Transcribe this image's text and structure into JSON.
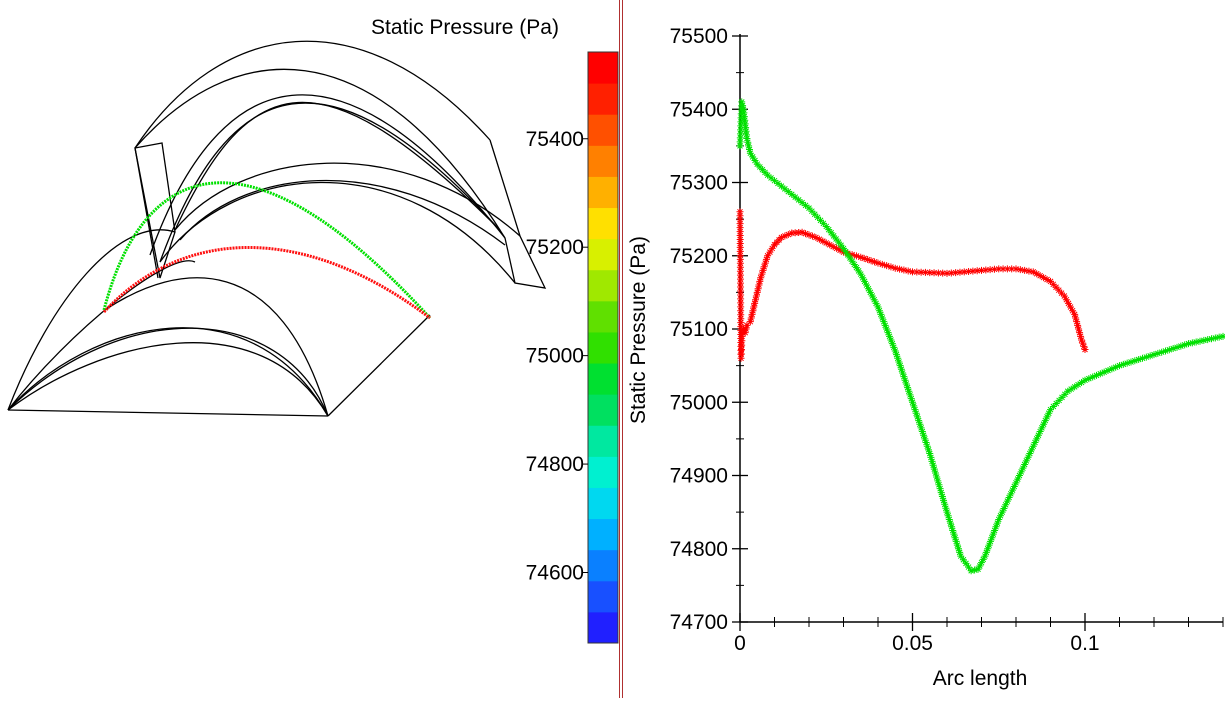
{
  "contour_view": {
    "legend_title": "Static Pressure (Pa)",
    "colorbar_ticks": [
      "75400",
      "75200",
      "75000",
      "74800",
      "74600"
    ],
    "colorbar_tick_values": [
      75400,
      75200,
      75000,
      74800,
      74600
    ],
    "colorbar_range": [
      74470,
      75560
    ],
    "colorbar_colors": [
      "#2020ff",
      "#1850ff",
      "#0a80ff",
      "#00b0ff",
      "#00d8f0",
      "#00f0d0",
      "#00e8a0",
      "#00e060",
      "#00e030",
      "#30e000",
      "#60e000",
      "#a0e800",
      "#d8f000",
      "#ffe000",
      "#ffb000",
      "#ff8000",
      "#ff5000",
      "#ff2000",
      "#ff0000"
    ]
  },
  "chart_data": {
    "type": "line",
    "title": "",
    "xlabel": "Arc length",
    "ylabel": "Static Pressure (Pa)",
    "xlim": [
      0,
      0.14
    ],
    "ylim": [
      74700,
      75500
    ],
    "x_ticks": [
      "0",
      "0.05",
      "0.1"
    ],
    "x_tick_values": [
      0,
      0.05,
      0.1
    ],
    "y_ticks": [
      "74700",
      "74800",
      "74900",
      "75000",
      "75100",
      "75200",
      "75300",
      "75400",
      "75500"
    ],
    "y_tick_values": [
      74700,
      74800,
      74900,
      75000,
      75100,
      75200,
      75300,
      75400,
      75500
    ],
    "marker": "asterisk",
    "series": [
      {
        "color": "#ff0000",
        "x": [
          0,
          0.0003,
          0.0006,
          0.001,
          0.0015,
          0.002,
          0.003,
          0.004,
          0.006,
          0.008,
          0.01,
          0.012,
          0.015,
          0.018,
          0.022,
          0.026,
          0.03,
          0.035,
          0.04,
          0.045,
          0.05,
          0.055,
          0.06,
          0.065,
          0.07,
          0.075,
          0.08,
          0.085,
          0.09,
          0.094,
          0.097,
          0.099,
          0.1
        ],
        "y": [
          75260,
          75060,
          75090,
          75100,
          75095,
          75105,
          75110,
          75130,
          75170,
          75200,
          75215,
          75225,
          75231,
          75232,
          75225,
          75215,
          75205,
          75198,
          75190,
          75183,
          75178,
          75177,
          75176,
          75178,
          75180,
          75182,
          75182,
          75178,
          75165,
          75145,
          75120,
          75085,
          75072
        ]
      },
      {
        "color": "#00e000",
        "x": [
          0,
          0.0005,
          0.001,
          0.0015,
          0.002,
          0.003,
          0.005,
          0.008,
          0.012,
          0.016,
          0.02,
          0.025,
          0.03,
          0.035,
          0.04,
          0.045,
          0.05,
          0.055,
          0.06,
          0.064,
          0.067,
          0.069,
          0.071,
          0.073,
          0.075,
          0.078,
          0.082,
          0.086,
          0.09,
          0.095,
          0.1,
          0.11,
          0.12,
          0.13,
          0.14
        ],
        "y": [
          75350,
          75410,
          75400,
          75380,
          75360,
          75340,
          75325,
          75310,
          75295,
          75280,
          75265,
          75240,
          75210,
          75175,
          75130,
          75070,
          75000,
          74930,
          74850,
          74790,
          74770,
          74772,
          74790,
          74815,
          74840,
          74870,
          74910,
          74950,
          74990,
          75015,
          75030,
          75050,
          75065,
          75080,
          75090
        ]
      }
    ]
  }
}
